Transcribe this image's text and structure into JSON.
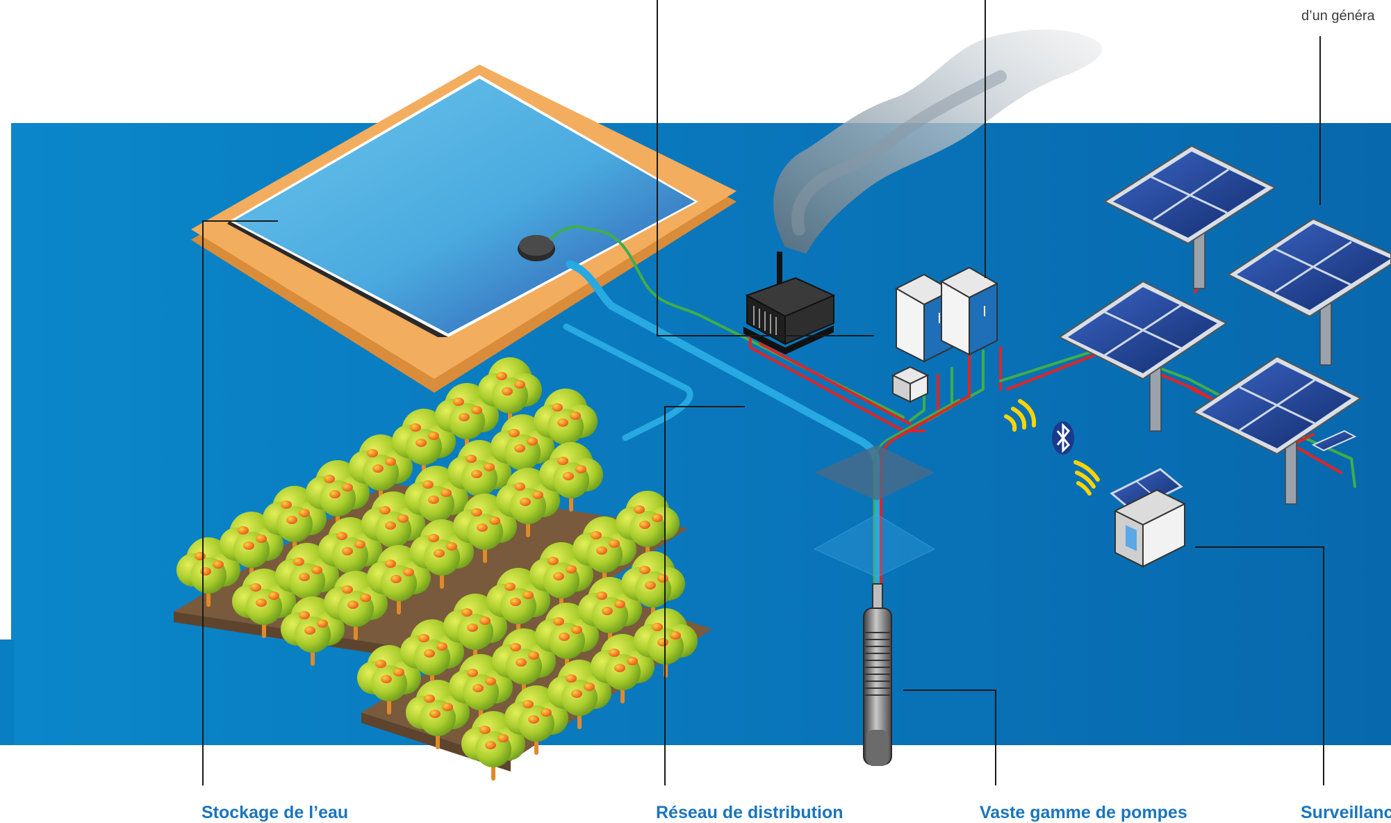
{
  "captions": {
    "water_storage": "Stockage de l’eau",
    "distribution": "Réseau de distribution",
    "pumps": "Vaste gamme de pompes",
    "monitoring": "Surveillanc"
  },
  "top_note": "d’un généra",
  "colors": {
    "background_band": "#0a7ec2",
    "caption_text": "#1b75bc",
    "water_pipe": "#27a9e1",
    "power_cable": "#e02424",
    "signal_cable": "#3fae49",
    "pond_rim": "#f3ad5f",
    "pond_water": "#5ab8e6",
    "tree_foliage": "#b5d334",
    "fruit": "#f0652a",
    "solar_panel": "#1f3f8f",
    "wireless_waves": "#ffd400"
  }
}
